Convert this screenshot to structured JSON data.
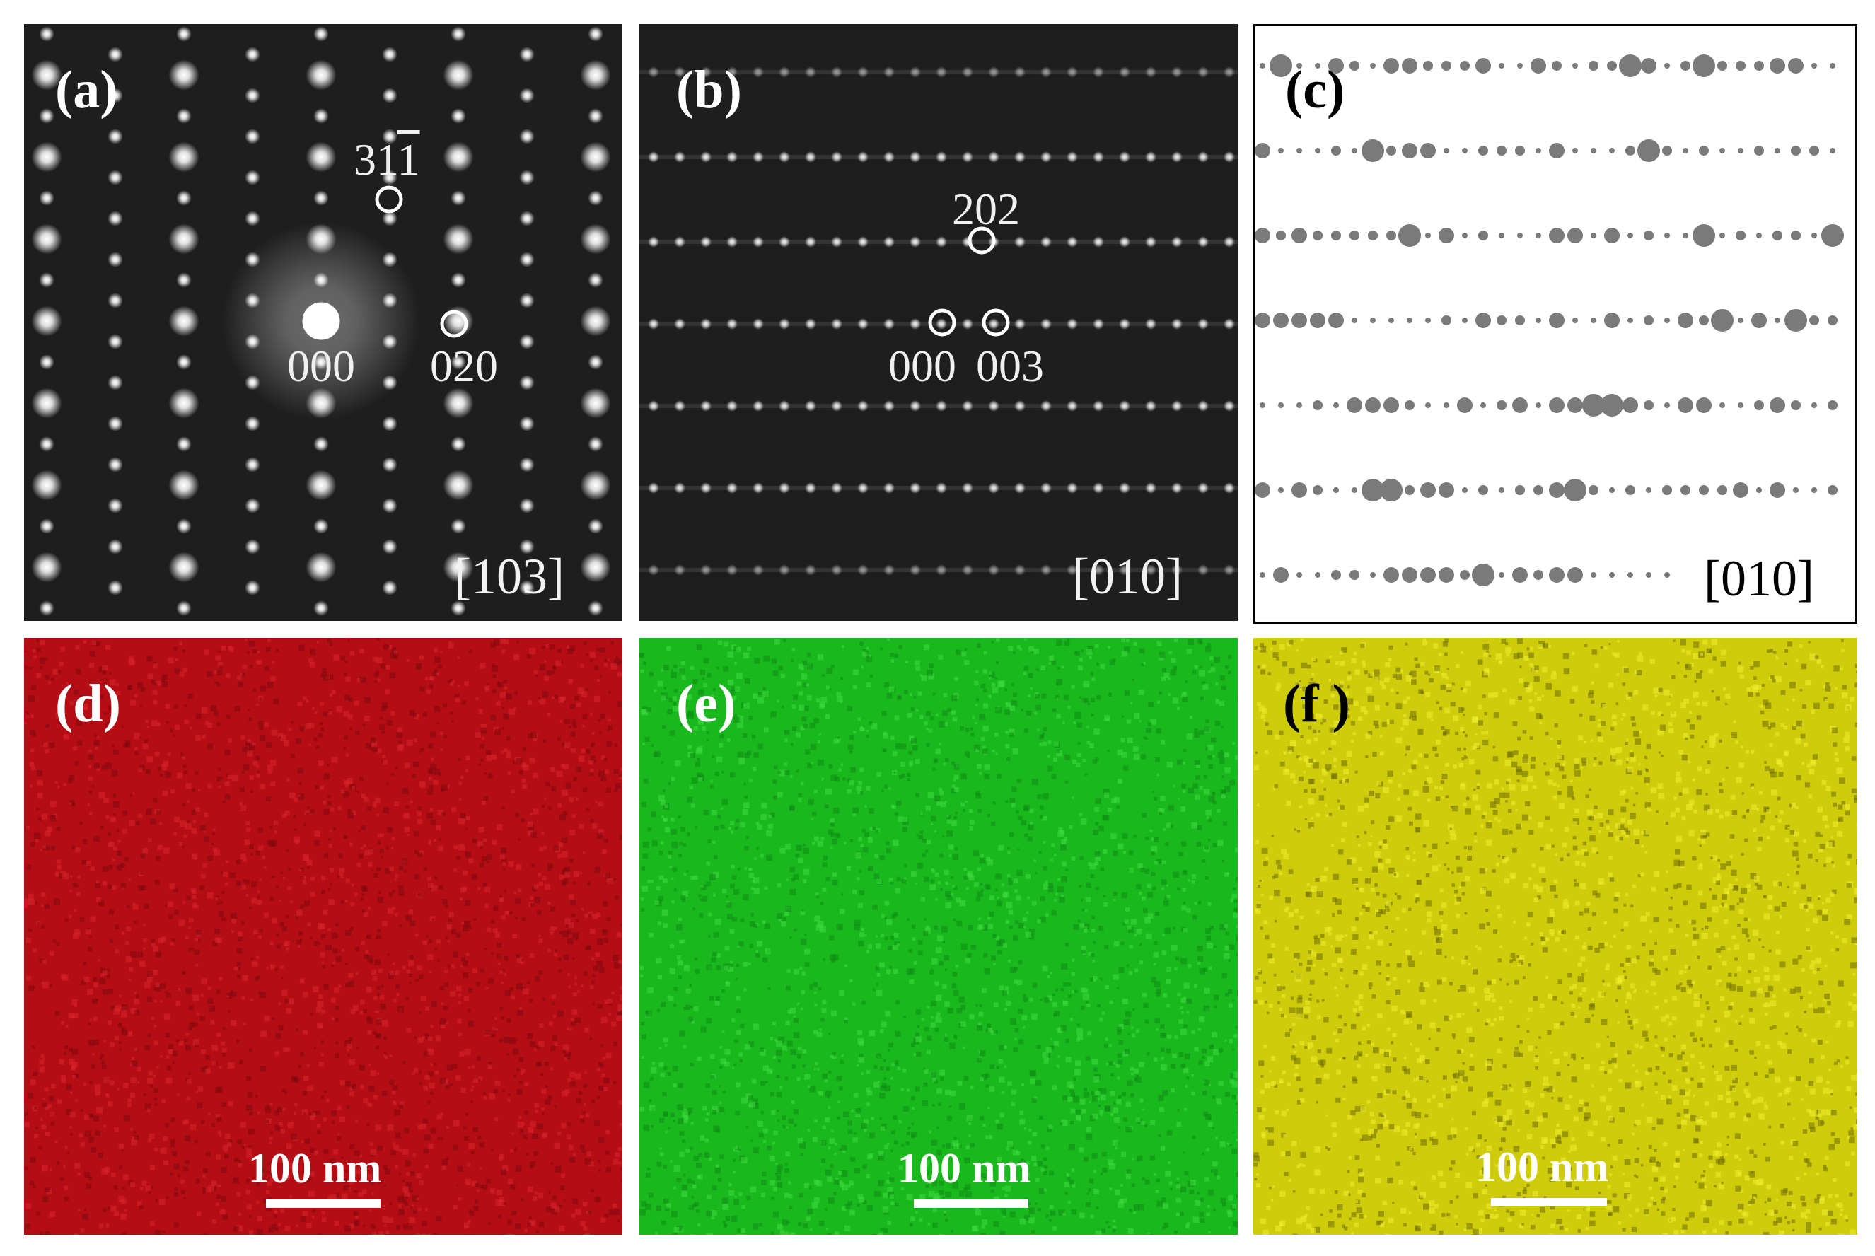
{
  "figure": {
    "panels": [
      {
        "label": "(a)",
        "zone_axis": "[103]",
        "type": "diffraction",
        "indices": {
          "i311_digits": "31",
          "i311_bar_digit": "1",
          "i000": "000",
          "i020": "020"
        }
      },
      {
        "label": "(b)",
        "zone_axis": "[010]",
        "type": "diffraction",
        "indices": {
          "i202": "202",
          "i000": "000",
          "i003": "003"
        }
      },
      {
        "label": "(c)",
        "zone_axis": "[010]",
        "type": "simulated-pattern"
      },
      {
        "label": "(d)",
        "type": "elemental-map",
        "color": "#b50d14",
        "scale_bar": "100 nm"
      },
      {
        "label": "(e)",
        "type": "elemental-map",
        "color": "#19b81d",
        "scale_bar": "100 nm"
      },
      {
        "label": "(f )",
        "type": "elemental-map",
        "color": "#cfcc0c",
        "scale_bar": "100 nm"
      }
    ]
  }
}
